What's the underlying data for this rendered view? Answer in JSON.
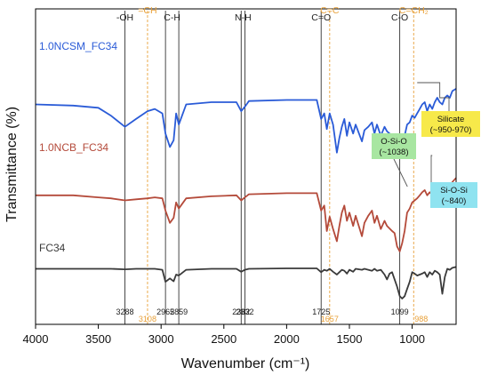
{
  "chart_data": {
    "type": "line",
    "xlabel": "Wavenumber (cm⁻¹)",
    "ylabel": "Transmittance (%)",
    "xlim": [
      4000,
      650
    ],
    "x_ticks": [
      "4000",
      "3500",
      "3000",
      "2500",
      "2000",
      "1500",
      "1000"
    ],
    "grid": false,
    "legend": "inline labels on curves",
    "series": [
      {
        "name": "1.0NCSM_FC34",
        "color": "#2a5bd7",
        "points": [
          [
            4000,
            0.48
          ],
          [
            3700,
            0.47
          ],
          [
            3500,
            0.45
          ],
          [
            3400,
            0.38
          ],
          [
            3288,
            0.28
          ],
          [
            3200,
            0.35
          ],
          [
            3108,
            0.42
          ],
          [
            3050,
            0.44
          ],
          [
            2990,
            0.4
          ],
          [
            2965,
            0.22
          ],
          [
            2930,
            0.1
          ],
          [
            2900,
            0.16
          ],
          [
            2880,
            0.4
          ],
          [
            2859,
            0.3
          ],
          [
            2800,
            0.48
          ],
          [
            2600,
            0.5
          ],
          [
            2400,
            0.5
          ],
          [
            2362,
            0.42
          ],
          [
            2332,
            0.46
          ],
          [
            2300,
            0.51
          ],
          [
            2000,
            0.52
          ],
          [
            1800,
            0.52
          ],
          [
            1760,
            0.52
          ],
          [
            1725,
            0.35
          ],
          [
            1700,
            0.4
          ],
          [
            1680,
            0.26
          ],
          [
            1657,
            0.4
          ],
          [
            1630,
            0.3
          ],
          [
            1600,
            0.05
          ],
          [
            1580,
            0.18
          ],
          [
            1560,
            0.28
          ],
          [
            1540,
            0.35
          ],
          [
            1520,
            0.2
          ],
          [
            1500,
            0.32
          ],
          [
            1470,
            0.22
          ],
          [
            1450,
            0.3
          ],
          [
            1400,
            0.15
          ],
          [
            1380,
            0.25
          ],
          [
            1350,
            0.28
          ],
          [
            1320,
            0.32
          ],
          [
            1300,
            0.22
          ],
          [
            1280,
            0.3
          ],
          [
            1250,
            0.2
          ],
          [
            1220,
            0.28
          ],
          [
            1200,
            0.24
          ],
          [
            1160,
            0.2
          ],
          [
            1140,
            0.15
          ],
          [
            1120,
            0.08
          ],
          [
            1099,
            0.0
          ],
          [
            1080,
            0.1
          ],
          [
            1060,
            0.2
          ],
          [
            1040,
            0.3
          ],
          [
            1020,
            0.32
          ],
          [
            1000,
            0.38
          ],
          [
            980,
            0.36
          ],
          [
            960,
            0.4
          ],
          [
            940,
            0.44
          ],
          [
            920,
            0.48
          ],
          [
            900,
            0.5
          ],
          [
            880,
            0.42
          ],
          [
            860,
            0.48
          ],
          [
            840,
            0.44
          ],
          [
            820,
            0.5
          ],
          [
            800,
            0.54
          ],
          [
            780,
            0.5
          ],
          [
            760,
            0.48
          ],
          [
            740,
            0.54
          ],
          [
            720,
            0.56
          ],
          [
            700,
            0.54
          ],
          [
            680,
            0.6
          ],
          [
            650,
            0.62
          ]
        ]
      },
      {
        "name": "1.0NCB_FC34",
        "color": "#b44a3a",
        "points": [
          [
            4000,
            0.55
          ],
          [
            3700,
            0.55
          ],
          [
            3500,
            0.53
          ],
          [
            3400,
            0.52
          ],
          [
            3288,
            0.5
          ],
          [
            3200,
            0.51
          ],
          [
            3108,
            0.52
          ],
          [
            3050,
            0.53
          ],
          [
            2990,
            0.52
          ],
          [
            2965,
            0.4
          ],
          [
            2930,
            0.28
          ],
          [
            2900,
            0.33
          ],
          [
            2880,
            0.48
          ],
          [
            2859,
            0.42
          ],
          [
            2800,
            0.52
          ],
          [
            2600,
            0.54
          ],
          [
            2400,
            0.55
          ],
          [
            2362,
            0.5
          ],
          [
            2332,
            0.53
          ],
          [
            2300,
            0.56
          ],
          [
            2000,
            0.57
          ],
          [
            1800,
            0.57
          ],
          [
            1760,
            0.57
          ],
          [
            1725,
            0.4
          ],
          [
            1700,
            0.45
          ],
          [
            1680,
            0.2
          ],
          [
            1657,
            0.34
          ],
          [
            1630,
            0.22
          ],
          [
            1600,
            0.1
          ],
          [
            1580,
            0.25
          ],
          [
            1560,
            0.38
          ],
          [
            1540,
            0.45
          ],
          [
            1520,
            0.3
          ],
          [
            1500,
            0.38
          ],
          [
            1470,
            0.25
          ],
          [
            1450,
            0.35
          ],
          [
            1400,
            0.15
          ],
          [
            1380,
            0.28
          ],
          [
            1350,
            0.35
          ],
          [
            1320,
            0.4
          ],
          [
            1300,
            0.28
          ],
          [
            1280,
            0.35
          ],
          [
            1250,
            0.22
          ],
          [
            1220,
            0.3
          ],
          [
            1200,
            0.25
          ],
          [
            1160,
            0.2
          ],
          [
            1140,
            0.18
          ],
          [
            1120,
            0.05
          ],
          [
            1099,
            0.0
          ],
          [
            1080,
            0.08
          ],
          [
            1060,
            0.2
          ],
          [
            1040,
            0.38
          ],
          [
            1020,
            0.42
          ],
          [
            1000,
            0.48
          ],
          [
            980,
            0.5
          ],
          [
            960,
            0.52
          ],
          [
            940,
            0.55
          ],
          [
            920,
            0.58
          ],
          [
            900,
            0.6
          ],
          [
            880,
            0.55
          ],
          [
            860,
            0.58
          ],
          [
            840,
            0.55
          ],
          [
            820,
            0.6
          ],
          [
            800,
            0.62
          ],
          [
            780,
            0.58
          ],
          [
            760,
            0.56
          ],
          [
            740,
            0.62
          ],
          [
            720,
            0.64
          ],
          [
            700,
            0.62
          ],
          [
            680,
            0.68
          ],
          [
            650,
            0.72
          ]
        ]
      },
      {
        "name": "FC34",
        "color": "#3a3a3a",
        "points": [
          [
            4000,
            0.62
          ],
          [
            3700,
            0.62
          ],
          [
            3500,
            0.62
          ],
          [
            3400,
            0.62
          ],
          [
            3288,
            0.61
          ],
          [
            3200,
            0.62
          ],
          [
            3108,
            0.62
          ],
          [
            3050,
            0.62
          ],
          [
            2990,
            0.6
          ],
          [
            2965,
            0.35
          ],
          [
            2930,
            0.42
          ],
          [
            2900,
            0.36
          ],
          [
            2880,
            0.5
          ],
          [
            2859,
            0.48
          ],
          [
            2800,
            0.6
          ],
          [
            2600,
            0.62
          ],
          [
            2400,
            0.62
          ],
          [
            2362,
            0.56
          ],
          [
            2332,
            0.6
          ],
          [
            2300,
            0.62
          ],
          [
            2000,
            0.63
          ],
          [
            1800,
            0.63
          ],
          [
            1760,
            0.63
          ],
          [
            1725,
            0.55
          ],
          [
            1700,
            0.6
          ],
          [
            1680,
            0.58
          ],
          [
            1657,
            0.62
          ],
          [
            1630,
            0.56
          ],
          [
            1600,
            0.5
          ],
          [
            1580,
            0.55
          ],
          [
            1560,
            0.6
          ],
          [
            1540,
            0.58
          ],
          [
            1520,
            0.52
          ],
          [
            1500,
            0.6
          ],
          [
            1470,
            0.56
          ],
          [
            1450,
            0.62
          ],
          [
            1400,
            0.6
          ],
          [
            1380,
            0.62
          ],
          [
            1350,
            0.6
          ],
          [
            1320,
            0.58
          ],
          [
            1300,
            0.62
          ],
          [
            1280,
            0.58
          ],
          [
            1250,
            0.6
          ],
          [
            1220,
            0.5
          ],
          [
            1200,
            0.4
          ],
          [
            1180,
            0.52
          ],
          [
            1160,
            0.55
          ],
          [
            1140,
            0.4
          ],
          [
            1120,
            0.25
          ],
          [
            1099,
            0.05
          ],
          [
            1080,
            0.0
          ],
          [
            1060,
            0.05
          ],
          [
            1040,
            0.2
          ],
          [
            1020,
            0.35
          ],
          [
            1000,
            0.55
          ],
          [
            980,
            0.52
          ],
          [
            960,
            0.48
          ],
          [
            940,
            0.5
          ],
          [
            920,
            0.52
          ],
          [
            900,
            0.55
          ],
          [
            880,
            0.45
          ],
          [
            860,
            0.55
          ],
          [
            840,
            0.5
          ],
          [
            820,
            0.58
          ],
          [
            800,
            0.55
          ],
          [
            780,
            0.5
          ],
          [
            760,
            0.1
          ],
          [
            740,
            0.45
          ],
          [
            720,
            0.62
          ],
          [
            700,
            0.6
          ],
          [
            680,
            0.64
          ],
          [
            650,
            0.66
          ]
        ]
      }
    ],
    "peak_lines": [
      {
        "wavenumber": 3288,
        "color": "#333333",
        "dashed": false
      },
      {
        "wavenumber": 3108,
        "color": "#e8a13a",
        "dashed": true
      },
      {
        "wavenumber": 2965,
        "color": "#333333",
        "dashed": false
      },
      {
        "wavenumber": 2859,
        "color": "#333333",
        "dashed": false
      },
      {
        "wavenumber": 2362,
        "color": "#333333",
        "dashed": false
      },
      {
        "wavenumber": 2332,
        "color": "#333333",
        "dashed": false
      },
      {
        "wavenumber": 1725,
        "color": "#333333",
        "dashed": false
      },
      {
        "wavenumber": 1657,
        "color": "#e8a13a",
        "dashed": true
      },
      {
        "wavenumber": 1099,
        "color": "#333333",
        "dashed": false
      },
      {
        "wavenumber": 988,
        "color": "#e8a13a",
        "dashed": true
      }
    ],
    "peak_value_labels": [
      {
        "text": "3288",
        "wavenumber": 3288,
        "color": "#222222"
      },
      {
        "text": "3108",
        "wavenumber": 3108,
        "color": "#e8a13a"
      },
      {
        "text": "2965",
        "wavenumber": 2965,
        "color": "#222222"
      },
      {
        "text": "2859",
        "wavenumber": 2859,
        "color": "#222222"
      },
      {
        "text": "2362",
        "wavenumber": 2362,
        "color": "#222222"
      },
      {
        "text": "2332",
        "wavenumber": 2332,
        "color": "#222222"
      },
      {
        "text": "1725",
        "wavenumber": 1725,
        "color": "#222222"
      },
      {
        "text": "1657",
        "wavenumber": 1657,
        "color": "#e8a13a"
      },
      {
        "text": "1099",
        "wavenumber": 1099,
        "color": "#222222"
      },
      {
        "text": "988",
        "wavenumber": 988,
        "color": "#e8a13a"
      }
    ],
    "group_labels": [
      {
        "text": "-OH",
        "wavenumber": 3288,
        "color": "#222222"
      },
      {
        "text": "=CH",
        "wavenumber": 3108,
        "color": "#e8a13a"
      },
      {
        "text": "C-H",
        "wavenumber": 2912,
        "color": "#222222"
      },
      {
        "text": "N-H",
        "wavenumber": 2347,
        "color": "#222222"
      },
      {
        "text": "C=O",
        "wavenumber": 1725,
        "color": "#222222"
      },
      {
        "text": "C=C",
        "wavenumber": 1657,
        "color": "#e8a13a"
      },
      {
        "text": "C-O",
        "wavenumber": 1099,
        "color": "#222222"
      },
      {
        "text": "C=CH₂",
        "wavenumber": 988,
        "color": "#e8a13a"
      }
    ],
    "annotations": [
      {
        "text_lines": [
          "Silicate",
          "(~950-970)"
        ],
        "bg": "#f7e94a"
      },
      {
        "text_lines": [
          "O-Si-O",
          "(~1038)"
        ],
        "bg": "#a8e6a1"
      },
      {
        "text_lines": [
          "Si-O-Si",
          "(~840)"
        ],
        "bg": "#8fe3f0"
      }
    ]
  }
}
